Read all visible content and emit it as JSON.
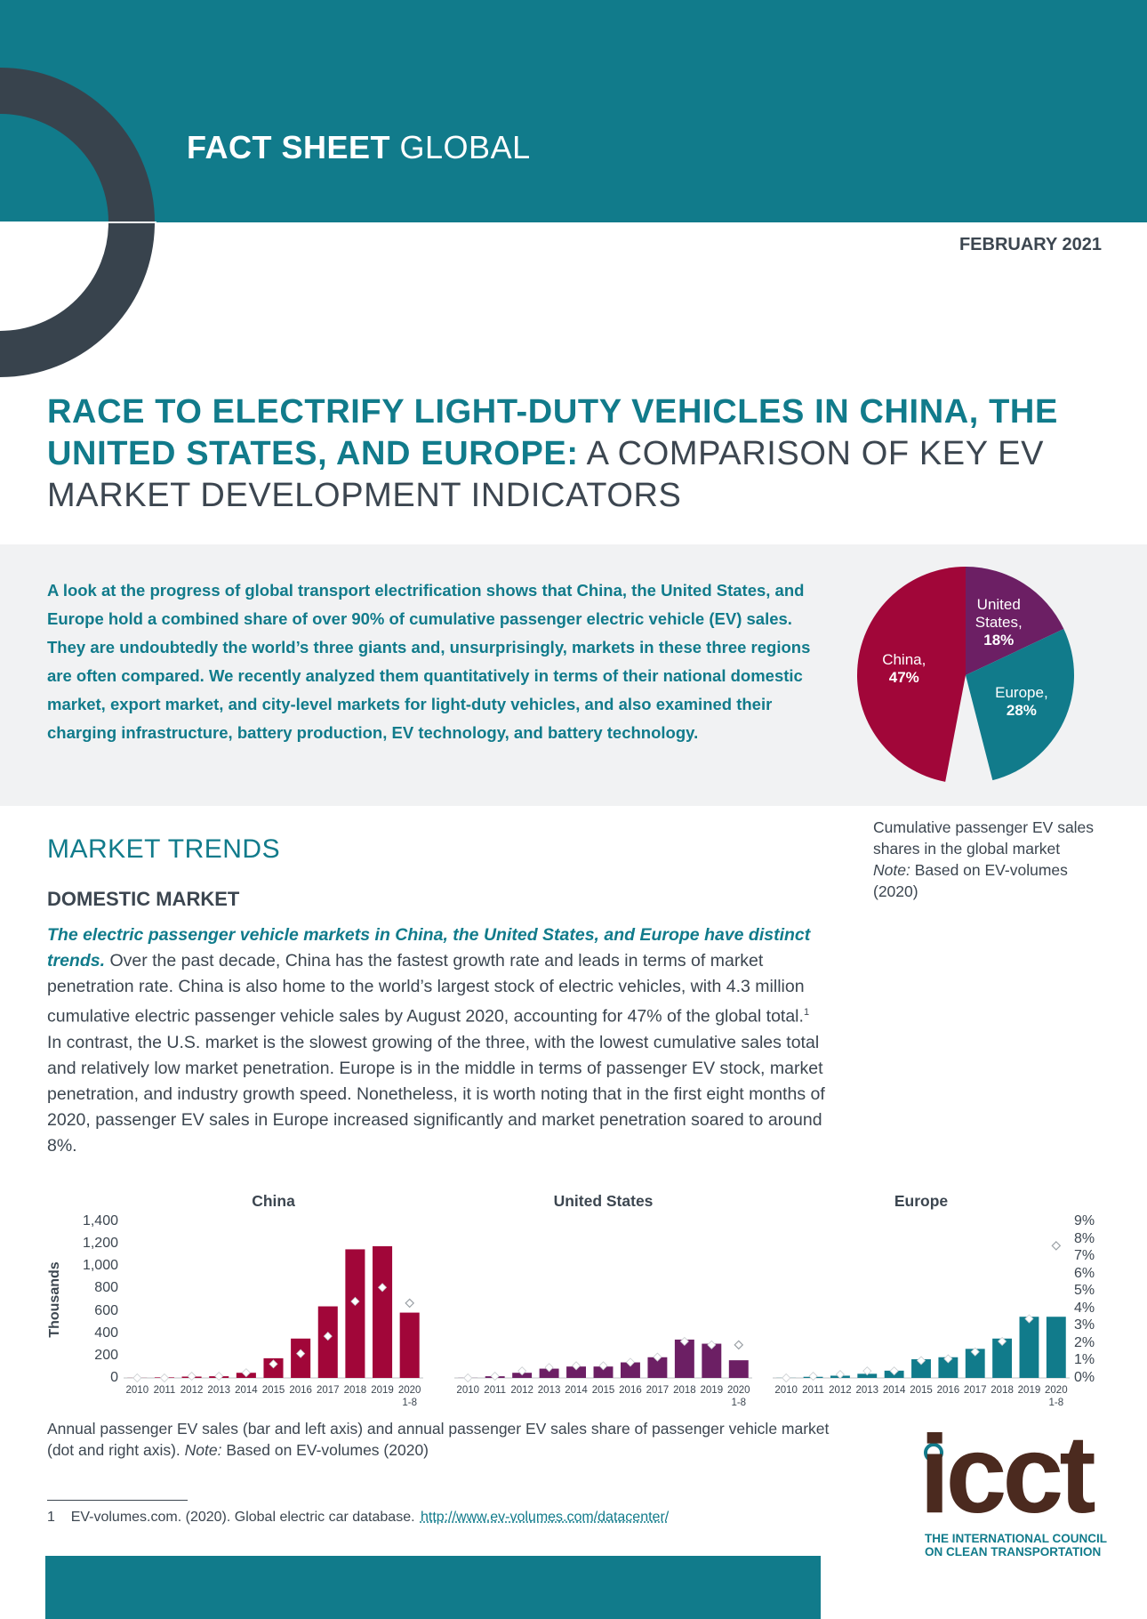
{
  "header": {
    "label_bold": "FACT SHEET",
    "label_light": "GLOBAL",
    "date": "FEBRUARY 2021"
  },
  "title": {
    "highlight": "RACE TO ELECTRIFY LIGHT-DUTY VEHICLES IN CHINA, THE UNITED STATES, AND EUROPE:",
    "rest": "A COMPARISON OF KEY EV MARKET DEVELOPMENT INDICATORS"
  },
  "intro": "A look at the progress of global transport electrification shows that China, the United States, and Europe hold a combined share of over 90% of cumulative passenger electric vehicle (EV) sales. They are undoubtedly the world’s three giants and, unsurprisingly, markets in these three regions are often compared. We recently analyzed them quantitatively in terms of their national domestic market, export market, and city-level markets for light-duty vehicles, and also examined their charging infrastructure, battery production, EV technology, and battery technology.",
  "pie_caption": {
    "text": "Cumulative passenger EV sales shares in the global market",
    "note": "Note:",
    "source": "Based on EV-volumes (2020)"
  },
  "section": {
    "heading": "MARKET TRENDS",
    "subheading": "DOMESTIC MARKET",
    "lead": "The electric passenger vehicle markets in China, the United States, and Europe have distinct trends.",
    "body_1": "Over the past decade, China has the fastest growth rate and leads in terms of market penetration rate. China is also home to the world’s largest stock of electric vehicles, with 4.3 million cumulative electric passenger vehicle sales by August 2020, accounting for 47% of the global total.",
    "footnote_ref": "1",
    "body_2": "In contrast, the U.S. market is the slowest growing of the three, with the lowest cumulative sales total and relatively low market penetration. Europe is in the middle in terms of passenger EV stock, market penetration, and industry growth speed. Nonetheless, it is worth noting that in the first eight months of 2020, passenger EV sales in Europe increased significantly and market penetration soared to around 8%."
  },
  "bar_caption": {
    "text": "Annual passenger EV sales (bar and left axis) and annual passenger EV sales share of passenger vehicle market (dot and right axis).",
    "note": "Note:",
    "source": "Based on EV-volumes (2020)"
  },
  "footnote": {
    "number": "1",
    "text": "EV-volumes.com. (2020). Global electric car database.",
    "link": "http://www.ev-volumes.com/datacenter/"
  },
  "logo": {
    "name": "icct",
    "tagline": [
      "THE INTERNATIONAL COUNCIL",
      "ON CLEAN TRANSPORTATION"
    ]
  },
  "chart_data": [
    {
      "type": "pie",
      "categories": [
        "China,",
        "United States,",
        "Europe,"
      ],
      "values": [
        47,
        18,
        28
      ],
      "value_labels": [
        "47%",
        "18%",
        "28%"
      ],
      "colors": [
        "#a10639",
        "#6c1f64",
        "#117b8b"
      ]
    },
    {
      "type": "bar",
      "title": "China",
      "ylabel": "Thousands",
      "categories": [
        "2010",
        "2011",
        "2012",
        "2013",
        "2014",
        "2015",
        "2016",
        "2017",
        "2018",
        "2019",
        "2020\n1-8"
      ],
      "series": [
        {
          "color": "#a10639",
          "values": [
            1,
            5,
            12,
            15,
            46,
            176,
            352,
            640,
            1150,
            1178,
            584
          ]
        },
        {
          "color": "#ffffff",
          "marker": "diamond",
          "axis": "y2",
          "values": [
            0,
            0,
            0.1,
            0.1,
            0.3,
            0.8,
            1.4,
            2.4,
            4.4,
            5.2,
            4.3
          ]
        }
      ],
      "ylim": [
        0,
        1400
      ],
      "y2lim": [
        0,
        9
      ],
      "yticks": [
        0,
        200,
        400,
        600,
        800,
        {
          "value": 1000,
          "label": "1,000"
        },
        {
          "value": 1200,
          "label": "1,200"
        },
        {
          "value": 1400,
          "label": "1,400"
        }
      ]
    },
    {
      "type": "bar",
      "title": "United States",
      "categories": [
        "2010",
        "2011",
        "2012",
        "2013",
        "2014",
        "2015",
        "2016",
        "2017",
        "2018",
        "2019",
        "2020\n1-8"
      ],
      "series": [
        {
          "color": "#6c1f64",
          "values": [
            1,
            15,
            46,
            83,
            102,
            102,
            139,
            185,
            343,
            306,
            158
          ]
        },
        {
          "color": "#ffffff",
          "marker": "diamond",
          "axis": "y2",
          "values": [
            0,
            0.1,
            0.4,
            0.6,
            0.7,
            0.7,
            0.9,
            1.2,
            2.1,
            1.9,
            1.9
          ]
        }
      ],
      "ylim": [
        0,
        1400
      ],
      "y2lim": [
        0,
        9
      ]
    },
    {
      "type": "bar",
      "title": "Europe",
      "categories": [
        "2010",
        "2011",
        "2012",
        "2013",
        "2014",
        "2015",
        "2016",
        "2017",
        "2018",
        "2019",
        "2020\n1-8"
      ],
      "series": [
        {
          "color": "#117b8b",
          "values": [
            1,
            10,
            20,
            37,
            65,
            167,
            185,
            260,
            352,
            547,
            547
          ]
        },
        {
          "color": "#ffffff",
          "marker": "diamond",
          "axis": "y2",
          "values": [
            0,
            0.1,
            0.2,
            0.4,
            0.4,
            1.0,
            1.1,
            1.5,
            2.1,
            3.4,
            7.6
          ]
        }
      ],
      "ylim": [
        0,
        1400
      ],
      "y2lim": [
        0,
        9
      ],
      "y2ticks": [
        {
          "value": 0,
          "label": "0%"
        },
        {
          "value": 1,
          "label": "1%"
        },
        {
          "value": 2,
          "label": "2%"
        },
        {
          "value": 3,
          "label": "3%"
        },
        {
          "value": 4,
          "label": "4%"
        },
        {
          "value": 5,
          "label": "5%"
        },
        {
          "value": 6,
          "label": "6%"
        },
        {
          "value": 7,
          "label": "7%"
        },
        {
          "value": 8,
          "label": "8%"
        },
        {
          "value": 9,
          "label": "9%"
        }
      ]
    }
  ]
}
